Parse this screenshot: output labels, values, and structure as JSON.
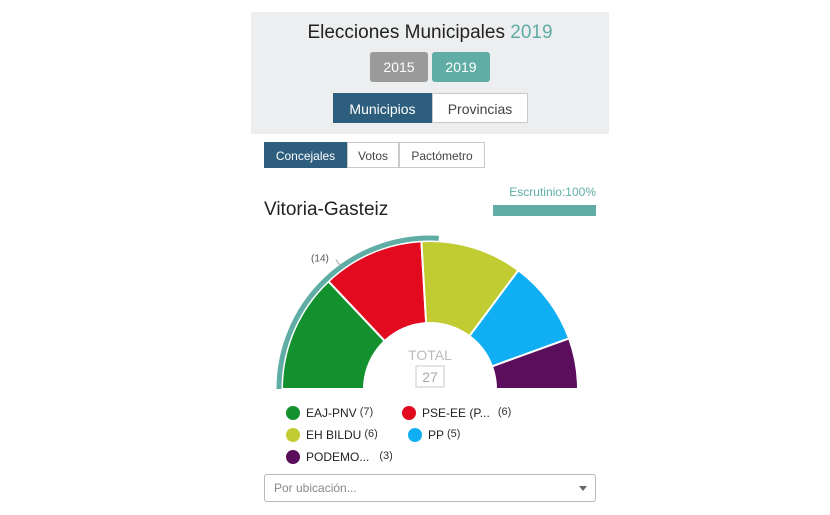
{
  "header": {
    "title_prefix": "Elecciones Municipales",
    "title_year": "2019",
    "years": [
      "2015",
      "2019"
    ],
    "selected_year": "2019",
    "scope_tabs": [
      "Municipios",
      "Provincias"
    ],
    "selected_scope": "Municipios"
  },
  "view_tabs": [
    "Concejales",
    "Votos",
    "Pactómetro"
  ],
  "selected_view": "Concejales",
  "scrutiny": {
    "label": "Escrutinio:100%",
    "percent": 100
  },
  "city": "Vitoria-Gasteiz",
  "majority_label": "(14)",
  "total": {
    "label": "TOTAL",
    "value": "27"
  },
  "colors": {
    "accent": "#5fada4",
    "navy": "#2e5e7e"
  },
  "chart_data": {
    "type": "pie",
    "variant": "parliament-semicircle",
    "total_seats": 27,
    "majority": 14,
    "series": [
      {
        "name": "EAJ-PNV",
        "display": "EAJ-PNV",
        "seats": 7,
        "color": "#14912f"
      },
      {
        "name": "PSE-EE (PSOE)",
        "display": "PSE-EE (P...",
        "seats": 6,
        "color": "#e20a1e"
      },
      {
        "name": "EH BILDU",
        "display": "EH BILDU",
        "seats": 6,
        "color": "#c0cc31"
      },
      {
        "name": "PP",
        "display": "PP",
        "seats": 5,
        "color": "#10aef2"
      },
      {
        "name": "PODEMOS",
        "display": "PODEMO...",
        "seats": 3,
        "color": "#5b0e5b"
      }
    ]
  },
  "legend": [
    {
      "name": "EAJ-PNV",
      "count": "(7)"
    },
    {
      "name": "PSE-EE (P...",
      "count": "(6)"
    },
    {
      "name": "EH BILDU",
      "count": "(6)"
    },
    {
      "name": "PP",
      "count": "(5)"
    },
    {
      "name": "PODEMO...",
      "count": "(3)"
    }
  ],
  "location_select": {
    "placeholder": "Por ubicación..."
  }
}
